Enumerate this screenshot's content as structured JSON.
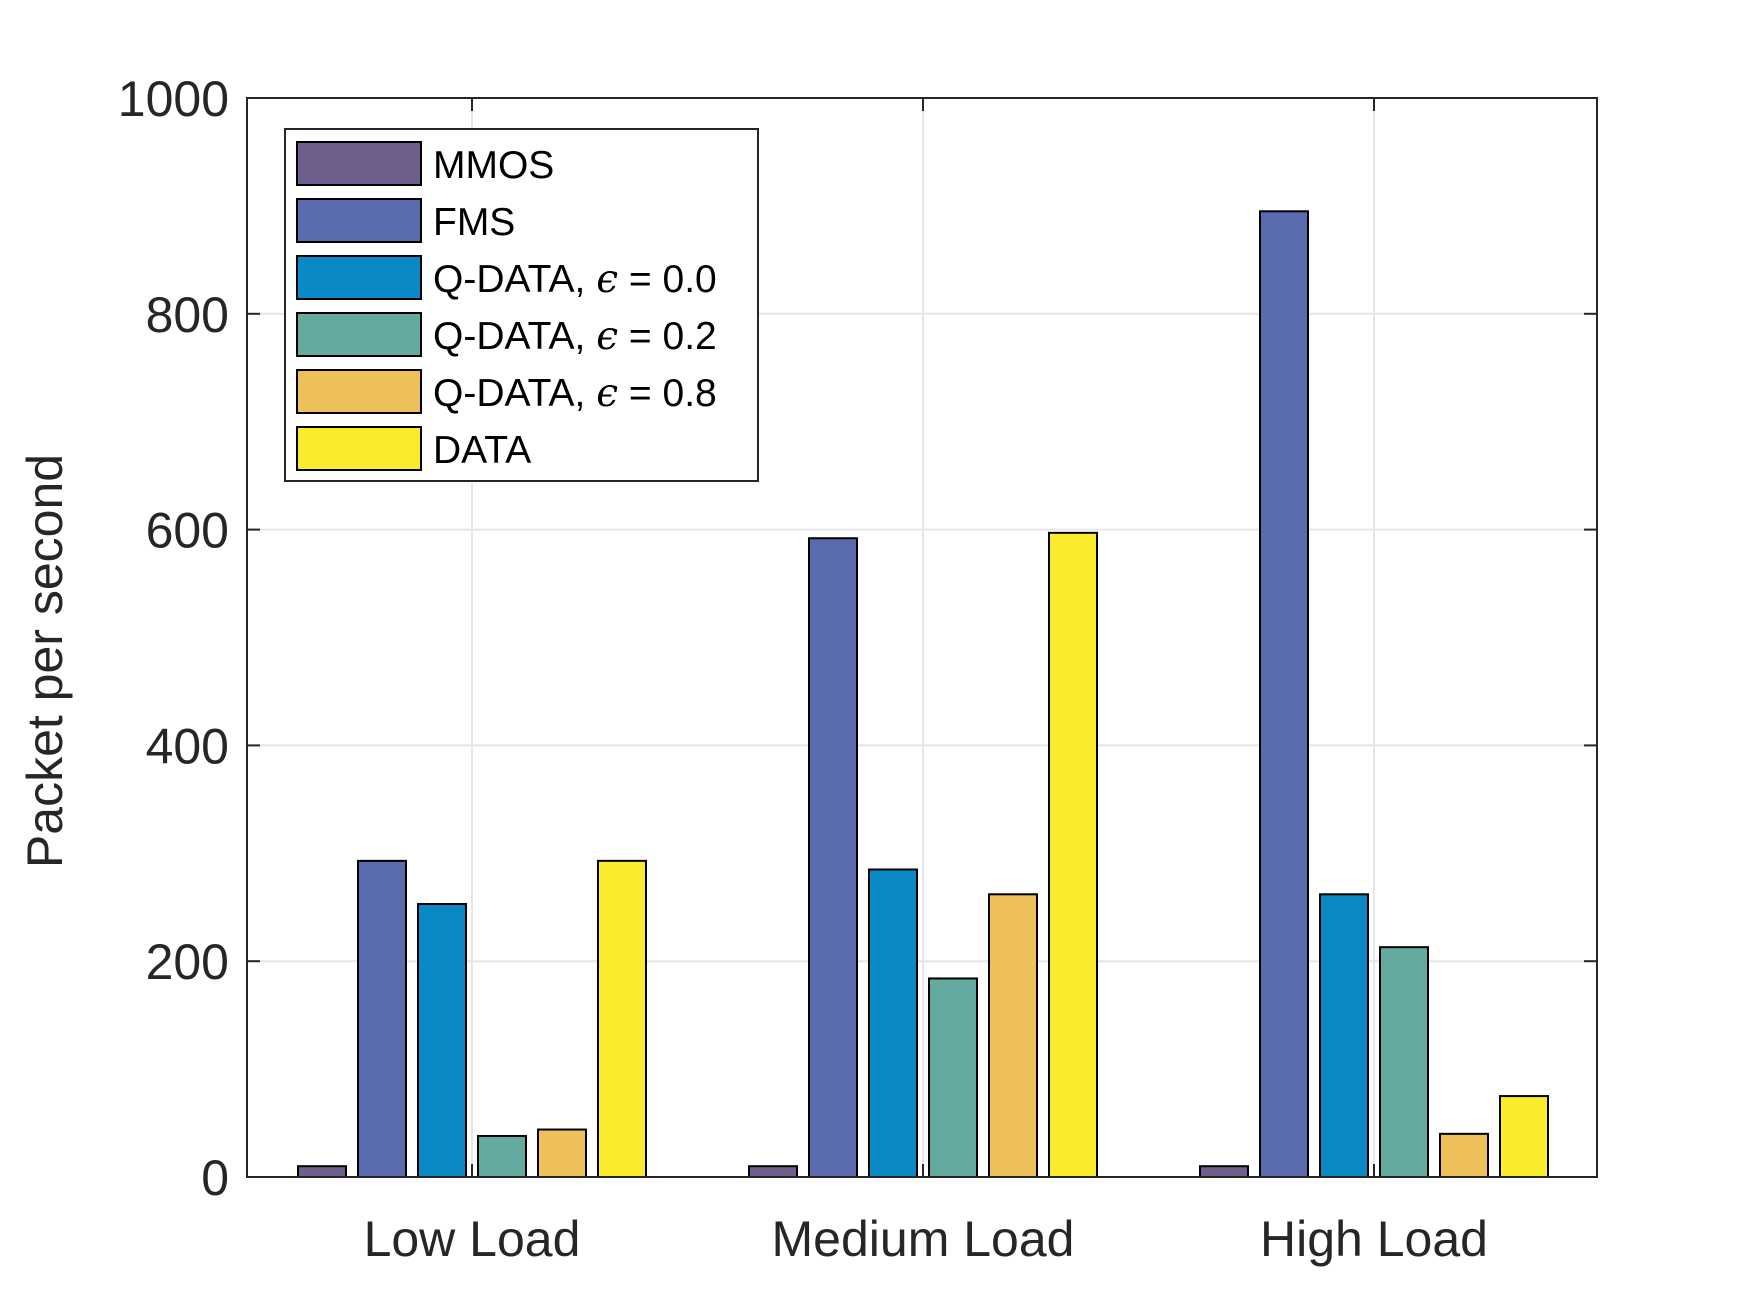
{
  "chart_data": {
    "type": "bar",
    "title": "",
    "xlabel": "",
    "ylabel": "Packet per second",
    "ylim": [
      0,
      1000
    ],
    "yticks": [
      "0",
      "200",
      "400",
      "600",
      "800",
      "1000"
    ],
    "grid": true,
    "legend_position": "top-left",
    "categories": [
      "Low Load",
      "Medium Load",
      "High Load"
    ],
    "series": [
      {
        "name": "MMOS",
        "label_prefix": "MMOS",
        "label_suffix": "",
        "color": "#6e5f8c",
        "values": [
          10,
          10,
          10
        ]
      },
      {
        "name": "FMS",
        "label_prefix": "FMS",
        "label_suffix": "",
        "color": "#5a6bb0",
        "values": [
          293,
          592,
          895
        ]
      },
      {
        "name": "Q-DATA, ε = 0.0",
        "label_prefix": "Q-DATA, ",
        "label_suffix": " = 0.0",
        "color": "#0a8ac4",
        "values": [
          253,
          285,
          262
        ]
      },
      {
        "name": "Q-DATA, ε = 0.2",
        "label_prefix": "Q-DATA, ",
        "label_suffix": " = 0.2",
        "color": "#65aaa0",
        "values": [
          38,
          184,
          213
        ]
      },
      {
        "name": "Q-DATA, ε = 0.8",
        "label_prefix": "Q-DATA, ",
        "label_suffix": " = 0.8",
        "color": "#eec05a",
        "values": [
          44,
          262,
          40
        ]
      },
      {
        "name": "DATA",
        "label_prefix": "DATA",
        "label_suffix": "",
        "color": "#fbeb2d",
        "values": [
          293,
          597,
          75
        ]
      }
    ]
  },
  "legend_symbol": "ϵ",
  "colors": {
    "axis": "#262626",
    "grid": "#e6e6e6",
    "bar_edge": "#000000"
  }
}
